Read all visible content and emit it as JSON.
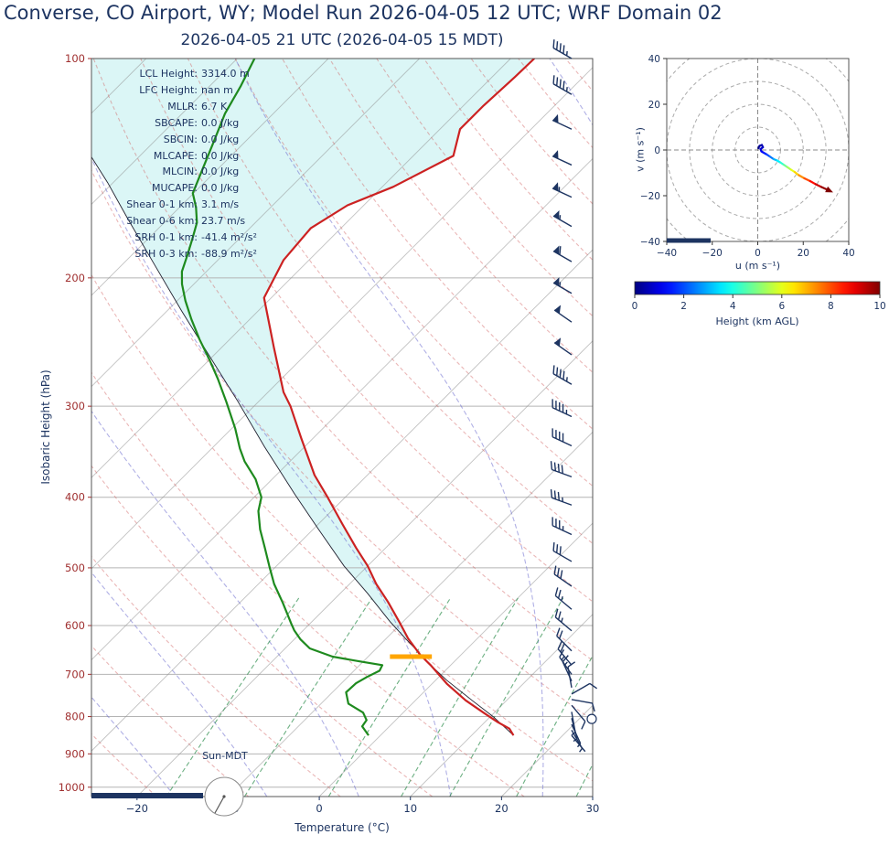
{
  "page_title": "Converse, CO Airport, WY; Model Run 2026-04-05 12 UTC; WRF Domain 02",
  "skewt": {
    "subtitle": "2026-04-05 21 UTC  (2026-04-05 15 MDT)",
    "xlabel": "Temperature (°C)",
    "ylabel": "Isobaric Height (hPa)",
    "sun_label": "Sun-MDT",
    "stats": [
      {
        "label": "LCL Height:",
        "value": "3314.0 m"
      },
      {
        "label": "LFC Height:",
        "value": "nan m"
      },
      {
        "label": "MLLR:",
        "value": "6.7 K"
      },
      {
        "label": "SBCAPE:",
        "value": "0.0 J/kg"
      },
      {
        "label": "SBCIN:",
        "value": "0.0 J/kg"
      },
      {
        "label": "MLCAPE:",
        "value": "0.0 J/kg"
      },
      {
        "label": "MLCIN:",
        "value": "0.0 J/kg"
      },
      {
        "label": "MUCAPE:",
        "value": "0.0 J/kg"
      },
      {
        "label": "Shear 0-1 km:",
        "value": "3.1 m/s"
      },
      {
        "label": "Shear 0-6 km:",
        "value": "23.7 m/s"
      },
      {
        "label": "SRH 0-1 km:",
        "value": "-41.4 m²/s²"
      },
      {
        "label": "SRH 0-3 km:",
        "value": "-88.9 m²/s²"
      }
    ]
  },
  "hodograph_labels": {
    "xlabel": "u (m s⁻¹)",
    "ylabel": "v (m s⁻¹)"
  },
  "colorbar_label": "Height (km AGL)",
  "chart_data": [
    {
      "name": "skew_t_sounding",
      "type": "line",
      "title": "2026-04-05 21 UTC  (2026-04-05 15 MDT)",
      "xlabel": "Temperature (°C)",
      "ylabel": "Isobaric Height (hPa)",
      "x_axis": {
        "ticks": [
          -20,
          -10,
          0,
          10,
          20,
          30
        ],
        "range": [
          -25,
          30
        ]
      },
      "y_axis": {
        "ticks": [
          100,
          200,
          300,
          400,
          500,
          600,
          700,
          800,
          900,
          1000
        ],
        "range": [
          100,
          1030
        ],
        "scale": "log"
      },
      "skew_degrees": 45,
      "series": [
        {
          "name": "temperature",
          "color": "#cc2222",
          "width": 2.2,
          "points": [
            [
              849,
              14.6
            ],
            [
              831,
              13.4
            ],
            [
              814,
              11.4
            ],
            [
              791,
              8.9
            ],
            [
              760,
              5.5
            ],
            [
              722,
              1.7
            ],
            [
              681,
              -2.1
            ],
            [
              658,
              -4.5
            ],
            [
              625,
              -7.6
            ],
            [
              593,
              -10.4
            ],
            [
              557,
              -13.8
            ],
            [
              526,
              -17.1
            ],
            [
              497,
              -20.0
            ],
            [
              469,
              -23.3
            ],
            [
              436,
              -27.3
            ],
            [
              401,
              -31.8
            ],
            [
              373,
              -35.8
            ],
            [
              332,
              -41.3
            ],
            [
              300,
              -46.0
            ],
            [
              287,
              -48.3
            ],
            [
              249,
              -54.3
            ],
            [
              213,
              -60.8
            ],
            [
              189,
              -62.8
            ],
            [
              171,
              -63.3
            ],
            [
              159,
              -61.8
            ],
            [
              150,
              -58.8
            ],
            [
              136,
              -55.6
            ],
            [
              125,
              -57.8
            ],
            [
              116,
              -57.8
            ],
            [
              106,
              -57.5
            ],
            [
              100,
              -57.4
            ]
          ]
        },
        {
          "name": "dewpoint",
          "color": "#1e8a1e",
          "width": 2.2,
          "points": [
            [
              849,
              -1.3
            ],
            [
              825,
              -3.0
            ],
            [
              809,
              -3.2
            ],
            [
              790,
              -4.4
            ],
            [
              768,
              -7.0
            ],
            [
              741,
              -8.5
            ],
            [
              720,
              -8.4
            ],
            [
              706,
              -7.9
            ],
            [
              692,
              -7.2
            ],
            [
              680,
              -7.5
            ],
            [
              672,
              -10.4
            ],
            [
              662,
              -13.9
            ],
            [
              645,
              -17.3
            ],
            [
              627,
              -19.3
            ],
            [
              609,
              -21.0
            ],
            [
              597,
              -22.0
            ],
            [
              558,
              -25.3
            ],
            [
              526,
              -28.3
            ],
            [
              497,
              -30.8
            ],
            [
              469,
              -33.3
            ],
            [
              443,
              -35.8
            ],
            [
              418,
              -38.0
            ],
            [
              400,
              -39.2
            ],
            [
              378,
              -41.8
            ],
            [
              357,
              -45.0
            ],
            [
              343,
              -46.9
            ],
            [
              322,
              -49.6
            ],
            [
              296,
              -53.5
            ],
            [
              275,
              -57.0
            ],
            [
              259,
              -60.0
            ],
            [
              243,
              -63.3
            ],
            [
              228,
              -66.4
            ],
            [
              215,
              -69.1
            ],
            [
              204,
              -71.3
            ],
            [
              196,
              -72.7
            ],
            [
              186,
              -73.9
            ],
            [
              177,
              -75.1
            ],
            [
              168,
              -76.4
            ],
            [
              160,
              -78.2
            ],
            [
              153,
              -80.1
            ],
            [
              143,
              -81.5
            ],
            [
              131,
              -83.3
            ],
            [
              119,
              -85.3
            ],
            [
              109,
              -86.6
            ],
            [
              100,
              -88.1
            ]
          ]
        },
        {
          "name": "surface_parcel",
          "color": "#20202f",
          "width": 0.9,
          "points": [
            [
              849,
              14.6
            ],
            [
              800,
              10.3
            ],
            [
              760,
              6.2
            ],
            [
              713,
              1.2
            ],
            [
              680,
              -2.2
            ],
            [
              660,
              -4.2
            ],
            [
              625,
              -7.9
            ],
            [
              593,
              -11.4
            ],
            [
              542,
              -17.0
            ],
            [
              497,
              -22.6
            ],
            [
              442,
              -29.5
            ],
            [
              396,
              -35.9
            ],
            [
              341,
              -44.4
            ],
            [
              295,
              -52.4
            ],
            [
              256,
              -60.4
            ],
            [
              222,
              -68.4
            ],
            [
              192,
              -76.4
            ],
            [
              166,
              -84.4
            ],
            [
              148,
              -90.6
            ],
            [
              136,
              -95.4
            ],
            [
              120,
              -103.0
            ],
            [
              100,
              -113.0
            ]
          ]
        }
      ],
      "cin_shading": {
        "between": [
          "surface_parcel",
          "temperature"
        ],
        "max_pressure": 662,
        "color": "rgba(0,190,190,0.14)"
      },
      "lcl_bar": {
        "pressure": 662,
        "t_from": -7.6,
        "t_to": -3.0,
        "color": "#ffa500"
      },
      "background": {
        "isotherms": {
          "color": "#909090",
          "opacity": 0.55,
          "range_c": [
            -120,
            40
          ],
          "step": 10
        },
        "dry_adiabats": {
          "color": "#d06060",
          "opacity": 0.45,
          "range_c": [
            -30,
            180
          ],
          "step": 10
        },
        "moist_adiabats": {
          "color": "#7070d0",
          "opacity": 0.55,
          "start_temps_c": [
            -58,
            -48,
            -38,
            -28,
            -18,
            -8,
            2,
            12,
            22,
            32,
            42
          ]
        },
        "mixing_ratio_g_kg": [
          1,
          2,
          4,
          7,
          10,
          16,
          24,
          32
        ],
        "mixing_color": "#2f8f4f",
        "pressure_gridline_color": "#b4b4b4"
      },
      "wind_barbs": {
        "color": "#1d3461",
        "surface_marker_pressure": 806,
        "levels": [
          [
            100,
            45,
            300
          ],
          [
            112,
            45,
            300
          ],
          [
            125,
            50,
            295
          ],
          [
            140,
            50,
            295
          ],
          [
            155,
            55,
            295
          ],
          [
            170,
            55,
            300
          ],
          [
            190,
            60,
            300
          ],
          [
            210,
            55,
            300
          ],
          [
            230,
            50,
            305
          ],
          [
            255,
            50,
            305
          ],
          [
            280,
            45,
            300
          ],
          [
            310,
            45,
            295
          ],
          [
            340,
            40,
            295
          ],
          [
            375,
            40,
            290
          ],
          [
            410,
            35,
            290
          ],
          [
            450,
            35,
            295
          ],
          [
            490,
            30,
            300
          ],
          [
            530,
            30,
            305
          ],
          [
            570,
            25,
            310
          ],
          [
            610,
            25,
            310
          ],
          [
            650,
            20,
            315
          ],
          [
            680,
            20,
            320
          ],
          [
            700,
            15,
            325
          ],
          [
            715,
            15,
            335
          ],
          [
            730,
            10,
            350
          ],
          [
            745,
            10,
            60
          ],
          [
            758,
            8,
            100
          ],
          [
            772,
            8,
            140
          ],
          [
            788,
            5,
            170
          ],
          [
            804,
            5,
            165
          ],
          [
            820,
            5,
            155
          ],
          [
            835,
            3,
            150
          ],
          [
            849,
            2,
            140
          ]
        ]
      }
    },
    {
      "name": "hodograph",
      "type": "line",
      "xlabel": "u (m s⁻¹)",
      "ylabel": "v (m s⁻¹)",
      "x_axis": {
        "ticks": [
          -40,
          -20,
          0,
          20,
          40
        ],
        "range": [
          -40,
          40
        ]
      },
      "y_axis": {
        "ticks": [
          -40,
          -20,
          0,
          20,
          40
        ],
        "range": [
          -40,
          40
        ]
      },
      "rings": [
        10,
        20,
        30,
        40,
        50
      ],
      "colormap": "jet",
      "color_by": "height_km_agl",
      "height_range_km": [
        0,
        10
      ],
      "points_u_v_heightkm": [
        [
          0.3,
          0.8,
          0
        ],
        [
          0.8,
          1.8,
          0.2
        ],
        [
          1.8,
          2.2,
          0.4
        ],
        [
          2.3,
          1.2,
          0.6
        ],
        [
          1.2,
          0.4,
          0.8
        ],
        [
          1.6,
          -0.6,
          1.0
        ],
        [
          2.6,
          -1.2,
          1.3
        ],
        [
          4.0,
          -2.0,
          1.7
        ],
        [
          5.5,
          -3.0,
          2.2
        ],
        [
          7.0,
          -4.0,
          2.7
        ],
        [
          8.5,
          -4.6,
          3.3
        ],
        [
          10.0,
          -5.5,
          3.9
        ],
        [
          11.5,
          -6.5,
          4.5
        ],
        [
          13.0,
          -7.5,
          5.1
        ],
        [
          14.6,
          -8.6,
          5.7
        ],
        [
          16.2,
          -9.6,
          6.3
        ],
        [
          18.0,
          -11.0,
          7.0
        ],
        [
          20.5,
          -12.4,
          7.7
        ],
        [
          23.0,
          -13.6,
          8.3
        ],
        [
          25.5,
          -15.0,
          9.0
        ],
        [
          28.0,
          -16.2,
          9.5
        ],
        [
          30.2,
          -17.2,
          10.0
        ]
      ],
      "colorbar": {
        "label": "Height (km AGL)",
        "ticks": [
          0,
          2,
          4,
          6,
          8,
          10
        ],
        "range_km": [
          0,
          10
        ]
      }
    }
  ]
}
